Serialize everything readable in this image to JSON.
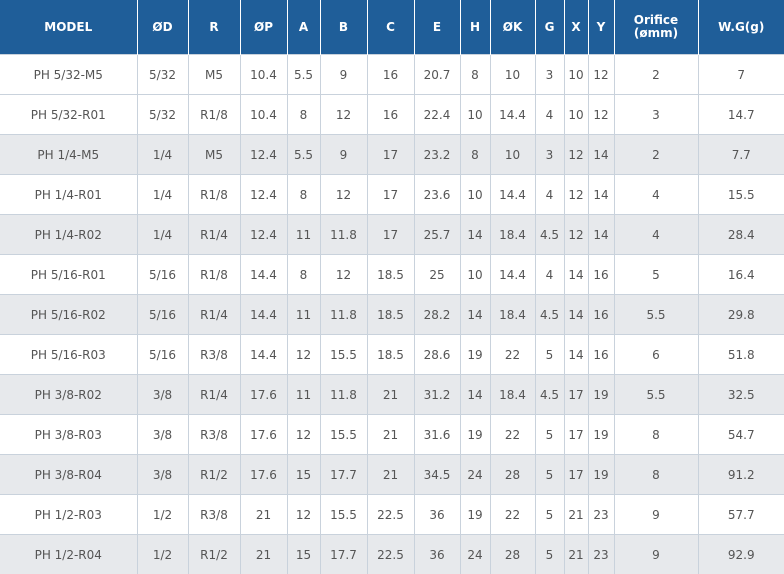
{
  "table": {
    "headers": [
      "MODEL",
      "ØD",
      "R",
      "ØP",
      "A",
      "B",
      "C",
      "E",
      "H",
      "ØK",
      "G",
      "X",
      "Y",
      "Orifice\n(ømm)",
      "W.G(g)"
    ],
    "rows": [
      [
        "PH 5/32-M5",
        "5/32",
        "M5",
        "10.4",
        "5.5",
        "9",
        "16",
        "20.7",
        "8",
        "10",
        "3",
        "10",
        "12",
        "2",
        "7"
      ],
      [
        "PH 5/32-R01",
        "5/32",
        "R1/8",
        "10.4",
        "8",
        "12",
        "16",
        "22.4",
        "10",
        "14.4",
        "4",
        "10",
        "12",
        "3",
        "14.7"
      ],
      [
        "PH 1/4-M5",
        "1/4",
        "M5",
        "12.4",
        "5.5",
        "9",
        "17",
        "23.2",
        "8",
        "10",
        "3",
        "12",
        "14",
        "2",
        "7.7"
      ],
      [
        "PH 1/4-R01",
        "1/4",
        "R1/8",
        "12.4",
        "8",
        "12",
        "17",
        "23.6",
        "10",
        "14.4",
        "4",
        "12",
        "14",
        "4",
        "15.5"
      ],
      [
        "PH 1/4-R02",
        "1/4",
        "R1/4",
        "12.4",
        "11",
        "11.8",
        "17",
        "25.7",
        "14",
        "18.4",
        "4.5",
        "12",
        "14",
        "4",
        "28.4"
      ],
      [
        "PH 5/16-R01",
        "5/16",
        "R1/8",
        "14.4",
        "8",
        "12",
        "18.5",
        "25",
        "10",
        "14.4",
        "4",
        "14",
        "16",
        "5",
        "16.4"
      ],
      [
        "PH 5/16-R02",
        "5/16",
        "R1/4",
        "14.4",
        "11",
        "11.8",
        "18.5",
        "28.2",
        "14",
        "18.4",
        "4.5",
        "14",
        "16",
        "5.5",
        "29.8"
      ],
      [
        "PH 5/16-R03",
        "5/16",
        "R3/8",
        "14.4",
        "12",
        "15.5",
        "18.5",
        "28.6",
        "19",
        "22",
        "5",
        "14",
        "16",
        "6",
        "51.8"
      ],
      [
        "PH 3/8-R02",
        "3/8",
        "R1/4",
        "17.6",
        "11",
        "11.8",
        "21",
        "31.2",
        "14",
        "18.4",
        "4.5",
        "17",
        "19",
        "5.5",
        "32.5"
      ],
      [
        "PH 3/8-R03",
        "3/8",
        "R3/8",
        "17.6",
        "12",
        "15.5",
        "21",
        "31.6",
        "19",
        "22",
        "5",
        "17",
        "19",
        "8",
        "54.7"
      ],
      [
        "PH 3/8-R04",
        "3/8",
        "R1/2",
        "17.6",
        "15",
        "17.7",
        "21",
        "34.5",
        "24",
        "28",
        "5",
        "17",
        "19",
        "8",
        "91.2"
      ],
      [
        "PH 1/2-R03",
        "1/2",
        "R3/8",
        "21",
        "12",
        "15.5",
        "22.5",
        "36",
        "19",
        "22",
        "5",
        "21",
        "23",
        "9",
        "57.7"
      ],
      [
        "PH 1/2-R04",
        "1/2",
        "R1/2",
        "21",
        "15",
        "17.7",
        "22.5",
        "36",
        "24",
        "28",
        "5",
        "21",
        "23",
        "9",
        "92.9"
      ]
    ]
  },
  "colors": {
    "header_bg": "#1f5e99",
    "header_text": "#ffffff",
    "row_shade": "#e7e9ec",
    "row_plain": "#ffffff",
    "cell_text": "#555555"
  }
}
